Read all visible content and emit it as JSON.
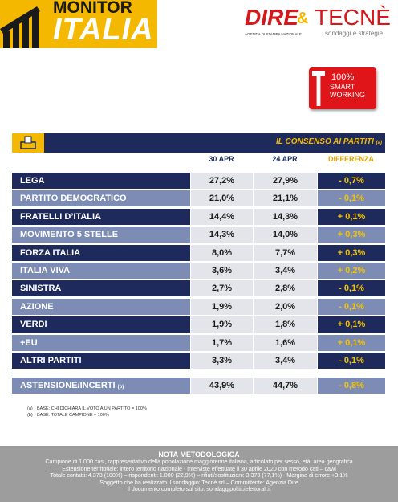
{
  "header": {
    "brand_top": "MONITOR",
    "brand_main": "ITALIA",
    "logo_dire": "DIRE",
    "logo_amp": "&",
    "logo_tecne": "TECNÈ",
    "dire_sub": "AGENZIA DI STAMPA NAZIONALE",
    "tecne_sub": "sondaggi e strategie",
    "badge": [
      "100%",
      "SMART",
      "WORKING"
    ]
  },
  "table": {
    "title": "IL CONSENSO AI PARTITI",
    "title_note": "(a)",
    "columns": [
      "30 APR",
      "24 APR",
      "DIFFERENZA"
    ],
    "rows": [
      [
        "LEGA",
        "27,2%",
        "27,9%",
        "- 0,7%"
      ],
      [
        "PARTITO DEMOCRATICO",
        "21,0%",
        "21,1%",
        "- 0,1%"
      ],
      [
        "FRATELLI D’ITALIA",
        "14,4%",
        "14,3%",
        "+ 0,1%"
      ],
      [
        "MOVIMENTO 5 STELLE",
        "14,3%",
        "14,0%",
        "+ 0,3%"
      ],
      [
        "FORZA ITALIA",
        "8,0%",
        "7,7%",
        "+ 0,3%"
      ],
      [
        "ITALIA VIVA",
        "3,6%",
        "3,4%",
        "+ 0,2%"
      ],
      [
        "SINISTRA",
        "2,7%",
        "2,8%",
        "- 0,1%"
      ],
      [
        "AZIONE",
        "1,9%",
        "2,0%",
        "- 0,1%"
      ],
      [
        "VERDI",
        "1,9%",
        "1,8%",
        "+ 0,1%"
      ],
      [
        "+EU",
        "1,7%",
        "1,6%",
        "+ 0,1%"
      ],
      [
        "ALTRI PARTITI",
        "3,3%",
        "3,4%",
        "- 0,1%"
      ]
    ],
    "abstention": {
      "label": "ASTENSIONE/INCERTI",
      "note": "(b)",
      "values": [
        "43,9%",
        "44,7%",
        "- 0,8%"
      ]
    }
  },
  "notes": [
    [
      "(a)",
      "BASE: CHI DICHIARA IL VOTO A UN PARTITO = 100%"
    ],
    [
      "(b)",
      "BASE: TOTALE CAMPIONE = 100%"
    ]
  ],
  "footer": {
    "title": "NOTA METODOLOGICA",
    "lines": [
      "Campione di 1.000 casi, rappresentativo della popolazione maggiorenne italiana, articolato per sesso, età, area geografica",
      "Estensione territoriale: intero territorio nazionale - Interviste effettuate il 30 aprile 2020 con metodo cati – cawi",
      "Totale contatti: 4.373 (100%) – rispondenti: 1.000 (22,9%) – rifiuti/sostituzioni: 3.373 (77,1%) - Margine di errore +3,1%",
      "Soggetto che ha realizzato il sondaggio: Tecnè srl – Committente: Agenzia Dire",
      "Il documento completo sul sito: sondaggipoliticielettorali.it"
    ]
  }
}
